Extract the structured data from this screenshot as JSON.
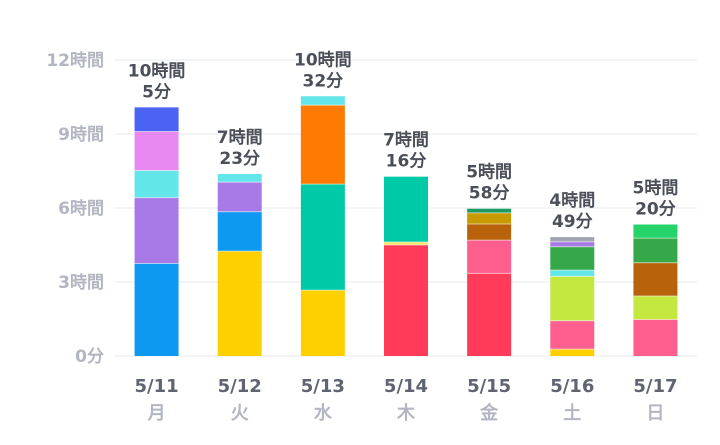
{
  "chart_data": {
    "type": "bar",
    "stacked": true,
    "unit": "hours",
    "ylim": [
      0,
      12
    ],
    "y_ticks": [
      {
        "value": 0,
        "label": "0分"
      },
      {
        "value": 3,
        "label": "3時間"
      },
      {
        "value": 6,
        "label": "6時間"
      },
      {
        "value": 9,
        "label": "9時間"
      },
      {
        "value": 12,
        "label": "12時間"
      }
    ],
    "grid": true,
    "categories": [
      {
        "date": "5/11",
        "day": "月",
        "total_lines": [
          "10時間",
          "5分"
        ],
        "segments": [
          {
            "value": 3.75,
            "color": "#0d99f2"
          },
          {
            "value": 2.67,
            "color": "#a77ae8"
          },
          {
            "value": 1.1,
            "color": "#63e6e9"
          },
          {
            "value": 1.58,
            "color": "#e889f2"
          },
          {
            "value": 0.98,
            "color": "#4a63f5"
          }
        ]
      },
      {
        "date": "5/12",
        "day": "火",
        "total_lines": [
          "7時間",
          "23分"
        ],
        "segments": [
          {
            "value": 4.25,
            "color": "#ffd000"
          },
          {
            "value": 1.6,
            "color": "#0d99f2"
          },
          {
            "value": 1.2,
            "color": "#a77ae8"
          },
          {
            "value": 0.33,
            "color": "#63e6e9"
          }
        ]
      },
      {
        "date": "5/13",
        "day": "水",
        "total_lines": [
          "10時間",
          "32分"
        ],
        "segments": [
          {
            "value": 2.67,
            "color": "#ffd000"
          },
          {
            "value": 4.3,
            "color": "#00c9a7"
          },
          {
            "value": 3.2,
            "color": "#ff7a00"
          },
          {
            "value": 0.36,
            "color": "#63e6e9"
          }
        ]
      },
      {
        "date": "5/14",
        "day": "木",
        "total_lines": [
          "7時間",
          "16分"
        ],
        "segments": [
          {
            "value": 4.5,
            "color": "#ff3b59"
          },
          {
            "value": 0.12,
            "color": "#f3e46a"
          },
          {
            "value": 2.65,
            "color": "#00c9a7"
          }
        ]
      },
      {
        "date": "5/15",
        "day": "金",
        "total_lines": [
          "5時間",
          "58分"
        ],
        "segments": [
          {
            "value": 3.35,
            "color": "#ff3b59"
          },
          {
            "value": 1.35,
            "color": "#ff5f8f"
          },
          {
            "value": 0.65,
            "color": "#b8620b"
          },
          {
            "value": 0.45,
            "color": "#c79a00"
          },
          {
            "value": 0.17,
            "color": "#1e9a63"
          }
        ]
      },
      {
        "date": "5/16",
        "day": "土",
        "total_lines": [
          "4時間",
          "49分"
        ],
        "segments": [
          {
            "value": 0.28,
            "color": "#ffd000"
          },
          {
            "value": 1.15,
            "color": "#ff5f8f"
          },
          {
            "value": 1.8,
            "color": "#c4e840"
          },
          {
            "value": 0.25,
            "color": "#63e6e9"
          },
          {
            "value": 0.95,
            "color": "#36a84a"
          },
          {
            "value": 0.2,
            "color": "#a77ae8"
          },
          {
            "value": 0.19,
            "color": "#9fa4b0"
          }
        ]
      },
      {
        "date": "5/17",
        "day": "日",
        "total_lines": [
          "5時間",
          "20分"
        ],
        "segments": [
          {
            "value": 1.48,
            "color": "#ff5f8f"
          },
          {
            "value": 0.95,
            "color": "#c4e840"
          },
          {
            "value": 1.35,
            "color": "#b8620b"
          },
          {
            "value": 1.0,
            "color": "#36a84a"
          },
          {
            "value": 0.55,
            "color": "#24d36a"
          }
        ]
      }
    ]
  }
}
